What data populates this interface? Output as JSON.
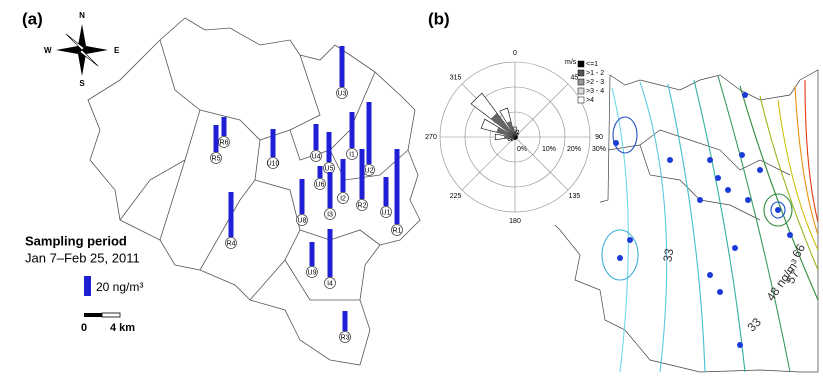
{
  "panel_a": {
    "label": "(a)",
    "compass": {
      "n": "N",
      "e": "E",
      "s": "S",
      "w": "W"
    },
    "sampling_title": "Sampling period",
    "sampling_dates": "Jan 7–Feb 25, 2011",
    "legend": {
      "value": 20,
      "label": "20 ng/m³",
      "color": "#1f1fd6"
    },
    "scale": {
      "start": "0",
      "end": "4 km"
    },
    "sites": [
      {
        "label": "U3",
        "value": 41
      },
      {
        "label": "R6",
        "value": 19
      },
      {
        "label": "R5",
        "value": 27
      },
      {
        "label": "U10",
        "value": 28
      },
      {
        "label": "U4",
        "value": 26
      },
      {
        "label": "I1",
        "value": 36
      },
      {
        "label": "U5",
        "value": 30
      },
      {
        "label": "U6",
        "value": 12
      },
      {
        "label": "U2",
        "value": 62
      },
      {
        "label": "R2",
        "value": 50
      },
      {
        "label": "I2",
        "value": 33
      },
      {
        "label": "U8",
        "value": 35
      },
      {
        "label": "I3",
        "value": 36
      },
      {
        "label": "U1",
        "value": 29
      },
      {
        "label": "R1",
        "value": 75
      },
      {
        "label": "R4",
        "value": 45
      },
      {
        "label": "U9",
        "value": 24
      },
      {
        "label": "I4",
        "value": 48
      },
      {
        "label": "R3",
        "value": 20
      }
    ]
  },
  "panel_b": {
    "label": "(b)",
    "wind_rose": {
      "type": "polar-bar",
      "unit": "m/s",
      "directions": [
        0,
        22.5,
        45,
        67.5,
        90,
        112.5,
        135,
        157.5,
        180,
        202.5,
        225,
        247.5,
        270,
        292.5,
        315,
        337.5
      ],
      "values": [
        4,
        3,
        2,
        1,
        1,
        1,
        1,
        1,
        1,
        1,
        2,
        3,
        8,
        14,
        22,
        12
      ],
      "angle_ticks": [
        0,
        45,
        90,
        135,
        180,
        225,
        270,
        315
      ],
      "rlim": [
        0,
        30
      ],
      "rticks": [
        {
          "value": 0,
          "label": "0%"
        },
        {
          "value": 10,
          "label": "10%"
        },
        {
          "value": 20,
          "label": "20%"
        },
        {
          "value": 30,
          "label": "30%"
        }
      ],
      "speed_classes": [
        {
          "name": "<=1",
          "color": "#000000"
        },
        {
          "name": ">1 - 2",
          "color": "#555555"
        },
        {
          "name": ">2 - 3",
          "color": "#999999"
        },
        {
          "name": ">3 - 4",
          "color": "#dddddd"
        },
        {
          "name": ">4",
          "color": "#ffffff"
        }
      ]
    },
    "contour_labels": [
      "33",
      "33",
      "48 ng/m³",
      "57",
      "66"
    ]
  }
}
